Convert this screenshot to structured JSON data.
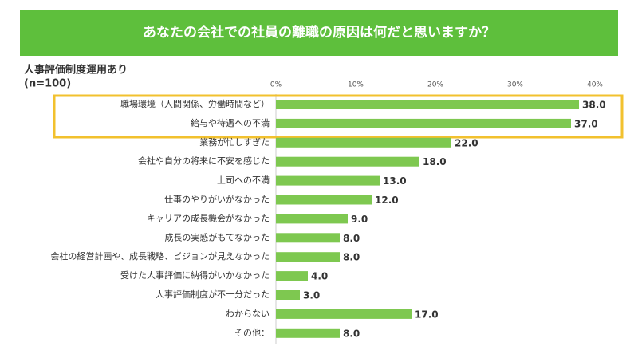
{
  "chart_data": {
    "type": "bar",
    "orientation": "horizontal",
    "title": "あなたの会社での社員の離職の原因は何だと思いますか？",
    "subtitle": "人事評価制度運用あり",
    "sample_size": "(n=100)",
    "categories": [
      "職場環境（人間関係、労働時間など）",
      "給与や待遇への不満",
      "業務が忙しすぎた",
      "会社や自分の将来に不安を感じた",
      "上司への不満",
      "仕事のやりがいがなかった",
      "キャリアの成長機会がなかった",
      "成長の実感がもてなかった",
      "会社の経営計画や、成長戦略、ビジョンが見えなかった",
      "受けた人事評価に納得がいかなかった",
      "人事評価制度が不十分だった",
      "わからない",
      "その他："
    ],
    "values": [
      38,
      37,
      22,
      18,
      13,
      12,
      9,
      8,
      8,
      4,
      3,
      17,
      8
    ],
    "value_labels": [
      "38.0",
      "37.0",
      "22.0",
      "18.0",
      "13.0",
      "12.0",
      "9.0",
      "8.0",
      "8.0",
      "4.0",
      "3.0",
      "17.0",
      "8.0"
    ],
    "color": "#7ec850",
    "xlim": [
      0,
      40
    ],
    "xticks": [
      {
        "value": 0,
        "label": "0%"
      },
      {
        "value": 10,
        "label": "10%"
      },
      {
        "value": 20,
        "label": "20%"
      },
      {
        "value": 30,
        "label": "30%"
      },
      {
        "value": 40,
        "label": "40%"
      }
    ]
  }
}
